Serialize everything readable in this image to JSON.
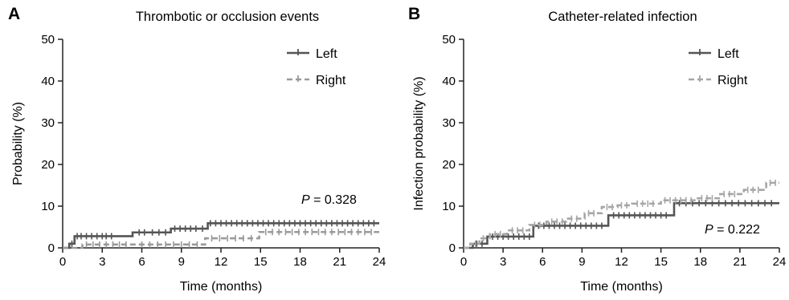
{
  "chart_data": [
    {
      "panel": "A",
      "type": "line",
      "title": "Thrombotic or occlusion events",
      "xlabel": "Time (months)",
      "ylabel": "Probability (%)",
      "xlim": [
        0,
        24
      ],
      "ylim": [
        0,
        50
      ],
      "xticks": [
        "0",
        "3",
        "6",
        "9",
        "12",
        "15",
        "18",
        "21",
        "24"
      ],
      "yticks": [
        "0",
        "10",
        "20",
        "30",
        "40",
        "50"
      ],
      "legend_position": "top-right",
      "annotation": {
        "p_label": "P",
        "p_rest": " = 0.328"
      },
      "series": [
        {
          "name": "Left",
          "color": "#555555",
          "style": "solid",
          "x": [
            0,
            0.5,
            0.9,
            5.3,
            8.2,
            11.0,
            24
          ],
          "y": [
            0,
            1.0,
            2.8,
            3.7,
            4.6,
            5.9,
            5.9
          ],
          "censored_x": [
            0.7,
            1.1,
            1.4,
            1.8,
            2.2,
            2.6,
            3.0,
            3.3,
            3.7,
            5.8,
            6.2,
            6.8,
            7.3,
            7.8,
            8.5,
            8.9,
            9.3,
            9.7,
            10.1,
            10.6,
            11.2,
            11.6,
            12.0,
            12.4,
            12.8,
            13.2,
            13.6,
            14.0,
            14.4,
            14.8,
            15.2,
            15.6,
            16.0,
            16.4,
            16.8,
            17.2,
            17.6,
            18.0,
            18.4,
            18.8,
            19.2,
            19.6,
            20.0,
            20.4,
            20.8,
            21.2,
            21.6,
            22.0,
            22.4,
            22.8,
            23.2,
            23.6
          ]
        },
        {
          "name": "Right",
          "color": "#9a9a9a",
          "style": "dashed",
          "x": [
            0,
            1.5,
            10.8,
            14.9,
            24
          ],
          "y": [
            0,
            0.8,
            2.3,
            3.8,
            3.8
          ],
          "censored_x": [
            1.8,
            2.3,
            2.8,
            3.3,
            3.8,
            4.3,
            4.8,
            6.0,
            6.6,
            7.2,
            7.8,
            8.4,
            9.0,
            9.6,
            10.2,
            11.3,
            11.9,
            12.5,
            13.1,
            13.7,
            14.3,
            15.4,
            15.9,
            16.4,
            16.9,
            17.4,
            17.9,
            18.4,
            18.9,
            19.4,
            19.9,
            20.4,
            20.9,
            21.4,
            21.9,
            22.4,
            22.9,
            23.4
          ]
        }
      ]
    },
    {
      "panel": "B",
      "type": "line",
      "title": "Catheter-related infection",
      "xlabel": "Time (months)",
      "ylabel": "Infection probability (%)",
      "xlim": [
        0,
        24
      ],
      "ylim": [
        0,
        50
      ],
      "xticks": [
        "0",
        "3",
        "6",
        "9",
        "12",
        "15",
        "18",
        "21",
        "24"
      ],
      "yticks": [
        "0",
        "10",
        "20",
        "30",
        "40",
        "50"
      ],
      "legend_position": "top-right",
      "annotation": {
        "p_label": "P",
        "p_rest": " = 0.222"
      },
      "series": [
        {
          "name": "Left",
          "color": "#555555",
          "style": "solid",
          "x": [
            0,
            0.7,
            1.8,
            5.3,
            11.0,
            16.0,
            24
          ],
          "y": [
            0,
            1.0,
            2.7,
            5.3,
            7.8,
            10.7,
            10.7
          ],
          "censored_x": [
            1.0,
            1.4,
            2.2,
            2.6,
            3.0,
            3.4,
            3.8,
            4.2,
            4.6,
            5.0,
            5.7,
            6.1,
            6.5,
            6.9,
            7.3,
            7.7,
            8.1,
            8.5,
            8.9,
            9.3,
            9.7,
            10.1,
            10.5,
            11.4,
            11.8,
            12.2,
            12.6,
            13.0,
            13.4,
            13.8,
            14.2,
            14.6,
            15.0,
            15.4,
            16.4,
            16.9,
            17.4,
            17.9,
            18.4,
            18.9,
            19.4,
            19.9,
            20.4,
            20.9,
            21.4,
            21.9,
            22.4,
            22.9,
            23.4
          ]
        },
        {
          "name": "Right",
          "color": "#a6a6a6",
          "style": "dashed",
          "x": [
            0,
            0.5,
            1.2,
            2.0,
            3.3,
            5.0,
            6.3,
            7.8,
            9.2,
            10.5,
            11.7,
            12.8,
            15.0,
            17.8,
            19.5,
            21.3,
            23.0,
            24
          ],
          "y": [
            0,
            1.0,
            2.3,
            3.3,
            4.2,
            5.5,
            6.3,
            7.0,
            8.3,
            9.8,
            10.2,
            10.6,
            11.4,
            11.9,
            12.9,
            13.9,
            15.6,
            15.6
          ],
          "censored_x": [
            0.9,
            1.5,
            2.4,
            2.8,
            3.7,
            4.1,
            4.5,
            5.4,
            5.8,
            6.7,
            7.1,
            7.5,
            8.2,
            8.6,
            9.5,
            9.9,
            10.9,
            11.3,
            12.0,
            12.4,
            13.2,
            13.6,
            14.0,
            14.4,
            15.3,
            15.7,
            16.1,
            16.5,
            16.9,
            17.3,
            18.1,
            18.5,
            18.9,
            19.8,
            20.2,
            20.6,
            21.6,
            22.0,
            22.4,
            23.3,
            23.7
          ]
        }
      ]
    }
  ]
}
